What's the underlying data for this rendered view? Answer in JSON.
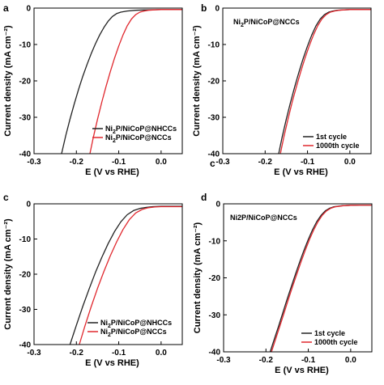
{
  "chart_data": [
    {
      "panel": "a",
      "type": "line",
      "xlabel": "E (V vs RHE)",
      "ylabel": "Current density (mA cm⁻²)",
      "xlim": [
        -0.3,
        0.05
      ],
      "ylim": [
        -40,
        0
      ],
      "xticks": [
        -0.3,
        -0.2,
        -0.1,
        0.0
      ],
      "xtick_labels": [
        "-0.3",
        "-0.2",
        "-0.1",
        "0.0"
      ],
      "yticks": [
        0,
        -10,
        -20,
        -30,
        -40
      ],
      "ytick_labels": [
        "0",
        "-10",
        "-20",
        "-30",
        "-40"
      ],
      "grid": false,
      "legend_position": "bottom-right",
      "series": [
        {
          "name": "Ni2P/NiCoP@NHCCs",
          "name_base": "Ni",
          "name_sub": "2",
          "name_rest": "P/NiCoP@NHCCs",
          "color": "#222222",
          "x": [
            -0.235,
            -0.225,
            -0.215,
            -0.205,
            -0.195,
            -0.185,
            -0.175,
            -0.165,
            -0.155,
            -0.145,
            -0.135,
            -0.125,
            -0.115,
            -0.105,
            -0.095,
            -0.08,
            -0.06,
            -0.04,
            -0.02,
            0.0,
            0.02,
            0.05
          ],
          "y": [
            -40,
            -35,
            -30.5,
            -26.3,
            -22.4,
            -18.8,
            -15.5,
            -12.5,
            -9.8,
            -7.4,
            -5.3,
            -3.6,
            -2.3,
            -1.5,
            -1.1,
            -0.8,
            -0.6,
            -0.5,
            -0.45,
            -0.4,
            -0.4,
            -0.4
          ]
        },
        {
          "name": "Ni2P/NiCoP@NCCs",
          "name_base": "Ni",
          "name_sub": "2",
          "name_rest": "P/NiCoP@NCCs",
          "color": "#e0282e",
          "x": [
            -0.168,
            -0.16,
            -0.15,
            -0.14,
            -0.13,
            -0.12,
            -0.11,
            -0.1,
            -0.09,
            -0.08,
            -0.07,
            -0.06,
            -0.05,
            -0.04,
            -0.03,
            -0.02,
            0.0,
            0.02,
            0.05
          ],
          "y": [
            -40,
            -35.5,
            -30.5,
            -25.8,
            -21.5,
            -17.5,
            -13.8,
            -10.4,
            -7.4,
            -4.9,
            -3.0,
            -1.8,
            -1.1,
            -0.8,
            -0.6,
            -0.5,
            -0.4,
            -0.4,
            -0.4
          ]
        }
      ]
    },
    {
      "panel": "b",
      "type": "line",
      "annotation": "Ni2P/NiCoP@NCCs",
      "annotation_base": "Ni",
      "annotation_sub": "2",
      "annotation_rest": "P/NiCoP@NCCs",
      "stray_letter": "c",
      "xlabel": "E (V vs RHE)",
      "ylabel": "Current density (mA cm⁻²)",
      "xlim": [
        -0.3,
        0.05
      ],
      "ylim": [
        -40,
        0
      ],
      "xticks": [
        -0.3,
        -0.2,
        -0.1,
        0.0
      ],
      "xtick_labels": [
        "-0.3",
        "-0.2",
        "-0.1",
        "0.0"
      ],
      "yticks": [
        0,
        -10,
        -20,
        -30,
        -40
      ],
      "ytick_labels": [
        "0",
        "-10",
        "-20",
        "-30",
        "-40"
      ],
      "grid": false,
      "legend_position": "bottom-right",
      "series": [
        {
          "name": "1st cycle",
          "color": "#222222",
          "x": [
            -0.168,
            -0.16,
            -0.15,
            -0.14,
            -0.13,
            -0.12,
            -0.11,
            -0.1,
            -0.09,
            -0.08,
            -0.07,
            -0.06,
            -0.05,
            -0.04,
            -0.03,
            -0.02,
            0.0,
            0.02,
            0.05
          ],
          "y": [
            -40,
            -35.5,
            -30.5,
            -25.8,
            -21.5,
            -17.5,
            -13.8,
            -10.4,
            -7.4,
            -4.9,
            -3.0,
            -1.8,
            -1.1,
            -0.8,
            -0.6,
            -0.5,
            -0.4,
            -0.4,
            -0.4
          ]
        },
        {
          "name": "1000th cycle",
          "color": "#e0282e",
          "x": [
            -0.164,
            -0.156,
            -0.146,
            -0.136,
            -0.126,
            -0.116,
            -0.106,
            -0.096,
            -0.086,
            -0.076,
            -0.066,
            -0.056,
            -0.046,
            -0.036,
            -0.026,
            -0.016,
            0.0,
            0.02,
            0.05
          ],
          "y": [
            -40,
            -35.5,
            -30.5,
            -25.8,
            -21.5,
            -17.5,
            -13.8,
            -10.4,
            -7.4,
            -4.9,
            -3.0,
            -1.8,
            -1.1,
            -0.8,
            -0.6,
            -0.5,
            -0.4,
            -0.4,
            -0.4
          ]
        }
      ]
    },
    {
      "panel": "c",
      "type": "line",
      "xlabel": "E (V vs RHE)",
      "ylabel": "Current density (mA cm⁻²)",
      "xlim": [
        -0.3,
        0.05
      ],
      "ylim": [
        -40,
        0
      ],
      "xticks": [
        -0.3,
        -0.2,
        -0.1,
        0.0
      ],
      "xtick_labels": [
        "-0.3",
        "-0.2",
        "-0.1",
        "0.0"
      ],
      "yticks": [
        0,
        -10,
        -20,
        -30,
        -40
      ],
      "ytick_labels": [
        "0",
        "-10",
        "-20",
        "-30",
        "-40"
      ],
      "grid": false,
      "legend_position": "bottom-right",
      "series": [
        {
          "name": "Ni2P/NiCoP@NHCCs",
          "name_base": "Ni",
          "name_sub": "2",
          "name_rest": "P/NiCoP@NHCCs",
          "color": "#222222",
          "x": [
            -0.215,
            -0.2,
            -0.185,
            -0.17,
            -0.155,
            -0.14,
            -0.125,
            -0.11,
            -0.095,
            -0.08,
            -0.065,
            -0.05,
            -0.035,
            -0.02,
            0.0,
            0.02,
            0.05
          ],
          "y": [
            -40,
            -34.5,
            -29.2,
            -24.2,
            -19.5,
            -15.2,
            -11.3,
            -7.9,
            -5.1,
            -3.1,
            -1.9,
            -1.3,
            -1.0,
            -0.8,
            -0.7,
            -0.7,
            -0.7
          ]
        },
        {
          "name": "Ni2P/NiCoP@NCCs",
          "name_base": "Ni",
          "name_sub": "2",
          "name_rest": "P/NiCoP@NCCs",
          "color": "#e0282e",
          "x": [
            -0.193,
            -0.18,
            -0.165,
            -0.15,
            -0.135,
            -0.12,
            -0.105,
            -0.09,
            -0.075,
            -0.06,
            -0.045,
            -0.03,
            -0.015,
            0.0,
            0.02,
            0.05
          ],
          "y": [
            -40,
            -34.8,
            -29.2,
            -24.0,
            -19.2,
            -14.8,
            -10.8,
            -7.3,
            -4.5,
            -2.6,
            -1.6,
            -1.1,
            -0.9,
            -0.8,
            -0.8,
            -0.8
          ]
        }
      ]
    },
    {
      "panel": "d",
      "type": "line",
      "annotation": "Ni2P/NiCoP@NCCs",
      "xlabel": "E (V vs RHE)",
      "ylabel": "Current density (mA cm⁻²)",
      "xlim": [
        -0.3,
        0.05
      ],
      "ylim": [
        -40,
        0
      ],
      "xticks": [
        -0.3,
        -0.2,
        -0.1,
        0.0
      ],
      "xtick_labels": [
        "-0.3",
        "-0.2",
        "-0.1",
        "0.0"
      ],
      "yticks": [
        0,
        -10,
        -20,
        -30,
        -40
      ],
      "ytick_labels": [
        "0",
        "-10",
        "-20",
        "-30",
        "-40"
      ],
      "grid": false,
      "legend_position": "bottom-right",
      "series": [
        {
          "name": "1st cycle",
          "color": "#222222",
          "x": [
            -0.19,
            -0.18,
            -0.17,
            -0.16,
            -0.15,
            -0.14,
            -0.13,
            -0.12,
            -0.11,
            -0.1,
            -0.09,
            -0.08,
            -0.07,
            -0.06,
            -0.05,
            -0.04,
            -0.02,
            0.0,
            0.02,
            0.05
          ],
          "y": [
            -40,
            -36.5,
            -33.0,
            -29.4,
            -25.8,
            -22.3,
            -18.9,
            -15.6,
            -12.5,
            -9.6,
            -7.0,
            -4.8,
            -3.1,
            -1.9,
            -1.2,
            -0.8,
            -0.5,
            -0.4,
            -0.35,
            -0.35
          ]
        },
        {
          "name": "1000th cycle",
          "color": "#e0282e",
          "x": [
            -0.187,
            -0.177,
            -0.167,
            -0.157,
            -0.147,
            -0.137,
            -0.127,
            -0.117,
            -0.107,
            -0.097,
            -0.087,
            -0.077,
            -0.067,
            -0.057,
            -0.047,
            -0.037,
            -0.017,
            0.0,
            0.02,
            0.05
          ],
          "y": [
            -40,
            -36.5,
            -33.0,
            -29.4,
            -25.8,
            -22.3,
            -18.9,
            -15.6,
            -12.5,
            -9.6,
            -7.0,
            -4.8,
            -3.1,
            -1.9,
            -1.2,
            -0.8,
            -0.5,
            -0.4,
            -0.35,
            -0.35
          ]
        }
      ]
    }
  ]
}
